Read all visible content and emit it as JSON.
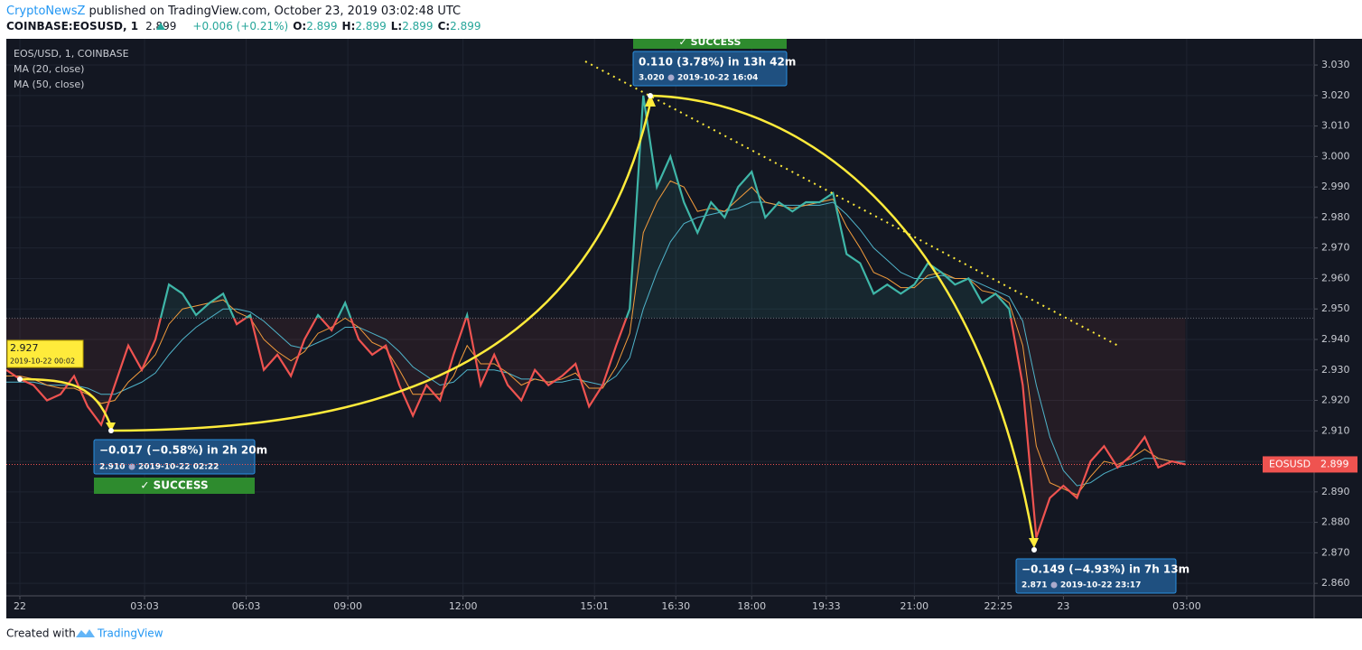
{
  "header": {
    "publisher": "CryptoNewsZ",
    "published": "published on TradingView.com, October 23, 2019 03:02:48 UTC",
    "symbol": "COINBASE:EOSUSD, 1",
    "last": "2.899",
    "change": "+0.006 (+0.21%)",
    "ohlc": [
      {
        "label": "O:",
        "value": "2.899"
      },
      {
        "label": "H:",
        "value": "2.899"
      },
      {
        "label": "L:",
        "value": "2.899"
      },
      {
        "label": "C:",
        "value": "2.899"
      }
    ]
  },
  "chart_data": {
    "type": "line",
    "xlim": [
      0,
      96.5
    ],
    "xticks": [
      {
        "value": 1,
        "label": "22"
      },
      {
        "value": 10.2,
        "label": "03:03"
      },
      {
        "value": 17.7,
        "label": "06:03"
      },
      {
        "value": 25.2,
        "label": "09:00"
      },
      {
        "value": 33.7,
        "label": "12:00"
      },
      {
        "value": 43.4,
        "label": "15:01"
      },
      {
        "value": 49.4,
        "label": "16:30"
      },
      {
        "value": 55,
        "label": "18:00"
      },
      {
        "value": 60.5,
        "label": "19:33"
      },
      {
        "value": 67,
        "label": "21:00"
      },
      {
        "value": 73.2,
        "label": "22:25"
      },
      {
        "value": 78,
        "label": "23"
      },
      {
        "value": 87.1,
        "label": "03:00"
      }
    ],
    "ylim": [
      2.8559,
      3.0386
    ],
    "yticks": [
      {
        "value": 3.03,
        "label": "3.030"
      },
      {
        "value": 3.02,
        "label": "3.020"
      },
      {
        "value": 3.01,
        "label": "3.010"
      },
      {
        "value": 3.0,
        "label": "3.000"
      },
      {
        "value": 2.99,
        "label": "2.990"
      },
      {
        "value": 2.98,
        "label": "2.980"
      },
      {
        "value": 2.97,
        "label": "2.970"
      },
      {
        "value": 2.96,
        "label": "2.960"
      },
      {
        "value": 2.95,
        "label": "2.950"
      },
      {
        "value": 2.94,
        "label": "2.940"
      },
      {
        "value": 2.93,
        "label": "2.930"
      },
      {
        "value": 2.92,
        "label": "2.920"
      },
      {
        "value": 2.91,
        "label": "2.910"
      },
      {
        "value": 2.9,
        "label": "2.900"
      },
      {
        "value": 2.89,
        "label": "2.890"
      },
      {
        "value": 2.88,
        "label": "2.880"
      },
      {
        "value": 2.87,
        "label": "2.870"
      },
      {
        "value": 2.86,
        "label": "2.860"
      }
    ],
    "grid": true,
    "baseline": 2.947,
    "above_color": "#3fb6a8",
    "below_color": "#ef5350",
    "series": [
      {
        "name": "EOS/USD, 1, COINBASE",
        "color": "#3fb6a8",
        "values": [
          2.93,
          2.927,
          2.925,
          2.92,
          2.922,
          2.928,
          2.918,
          2.912,
          2.925,
          2.938,
          2.93,
          2.94,
          2.958,
          2.955,
          2.948,
          2.952,
          2.955,
          2.945,
          2.948,
          2.93,
          2.935,
          2.928,
          2.94,
          2.948,
          2.943,
          2.952,
          2.94,
          2.935,
          2.938,
          2.925,
          2.915,
          2.925,
          2.92,
          2.935,
          2.948,
          2.925,
          2.935,
          2.925,
          2.92,
          2.93,
          2.925,
          2.928,
          2.932,
          2.918,
          2.925,
          2.938,
          2.95,
          3.02,
          2.99,
          3.0,
          2.985,
          2.975,
          2.985,
          2.98,
          2.99,
          2.995,
          2.98,
          2.985,
          2.982,
          2.985,
          2.985,
          2.988,
          2.968,
          2.965,
          2.955,
          2.958,
          2.955,
          2.958,
          2.965,
          2.962,
          2.958,
          2.96,
          2.952,
          2.955,
          2.95,
          2.925,
          2.875,
          2.888,
          2.892,
          2.888,
          2.9,
          2.905,
          2.898,
          2.902,
          2.908,
          2.898,
          2.9,
          2.899
        ]
      },
      {
        "name": "MA (20, close)",
        "color": "#f39c3c",
        "values": [
          2.928,
          2.928,
          2.927,
          2.925,
          2.924,
          2.924,
          2.922,
          2.919,
          2.92,
          2.926,
          2.93,
          2.935,
          2.945,
          2.95,
          2.951,
          2.952,
          2.953,
          2.949,
          2.947,
          2.94,
          2.936,
          2.933,
          2.936,
          2.942,
          2.944,
          2.947,
          2.944,
          2.939,
          2.937,
          2.93,
          2.922,
          2.922,
          2.922,
          2.928,
          2.938,
          2.932,
          2.932,
          2.929,
          2.925,
          2.927,
          2.926,
          2.927,
          2.929,
          2.924,
          2.924,
          2.931,
          2.942,
          2.975,
          2.985,
          2.992,
          2.99,
          2.982,
          2.983,
          2.982,
          2.986,
          2.99,
          2.985,
          2.984,
          2.983,
          2.984,
          2.985,
          2.986,
          2.977,
          2.97,
          2.962,
          2.96,
          2.957,
          2.957,
          2.961,
          2.962,
          2.96,
          2.96,
          2.956,
          2.955,
          2.952,
          2.938,
          2.905,
          2.893,
          2.891,
          2.889,
          2.895,
          2.9,
          2.899,
          2.901,
          2.904,
          2.901,
          2.9,
          2.899
        ]
      },
      {
        "name": "MA (50, close)",
        "color": "#4fb3c9",
        "values": [
          2.926,
          2.926,
          2.926,
          2.925,
          2.925,
          2.925,
          2.924,
          2.922,
          2.922,
          2.924,
          2.926,
          2.929,
          2.935,
          2.94,
          2.944,
          2.947,
          2.95,
          2.95,
          2.949,
          2.946,
          2.942,
          2.938,
          2.937,
          2.939,
          2.941,
          2.944,
          2.944,
          2.942,
          2.94,
          2.936,
          2.931,
          2.928,
          2.925,
          2.926,
          2.93,
          2.93,
          2.93,
          2.929,
          2.927,
          2.927,
          2.926,
          2.926,
          2.927,
          2.926,
          2.925,
          2.928,
          2.934,
          2.95,
          2.962,
          2.972,
          2.978,
          2.98,
          2.981,
          2.982,
          2.983,
          2.985,
          2.985,
          2.984,
          2.984,
          2.984,
          2.984,
          2.985,
          2.981,
          2.976,
          2.97,
          2.966,
          2.962,
          2.96,
          2.96,
          2.961,
          2.96,
          2.96,
          2.958,
          2.956,
          2.954,
          2.946,
          2.925,
          2.908,
          2.897,
          2.892,
          2.893,
          2.896,
          2.898,
          2.899,
          2.901,
          2.901,
          2.9,
          2.9
        ]
      }
    ],
    "price_tag": {
      "name": "EOSUSD",
      "value": 2.899,
      "color": "#ef5350"
    },
    "annotations": [
      {
        "price": "2.927",
        "date": "2019-10-22 00:02"
      },
      {
        "change": "−0.017 (−0.58%) in 2h 20m",
        "price": "2.910",
        "date": "2019-10-22  02:22",
        "status": "✓ SUCCESS"
      },
      {
        "change": "0.110 (3.78%) in 13h 42m",
        "price": "3.020",
        "date": "2019-10-22  16:04",
        "status": "✓ SUCCESS"
      },
      {
        "change": "−0.149 (−4.93%) in 7h 13m",
        "price": "2.871",
        "date": "2019-10-22  23:17"
      }
    ]
  },
  "footer": {
    "text": "Created with",
    "brand": "TradingView"
  }
}
